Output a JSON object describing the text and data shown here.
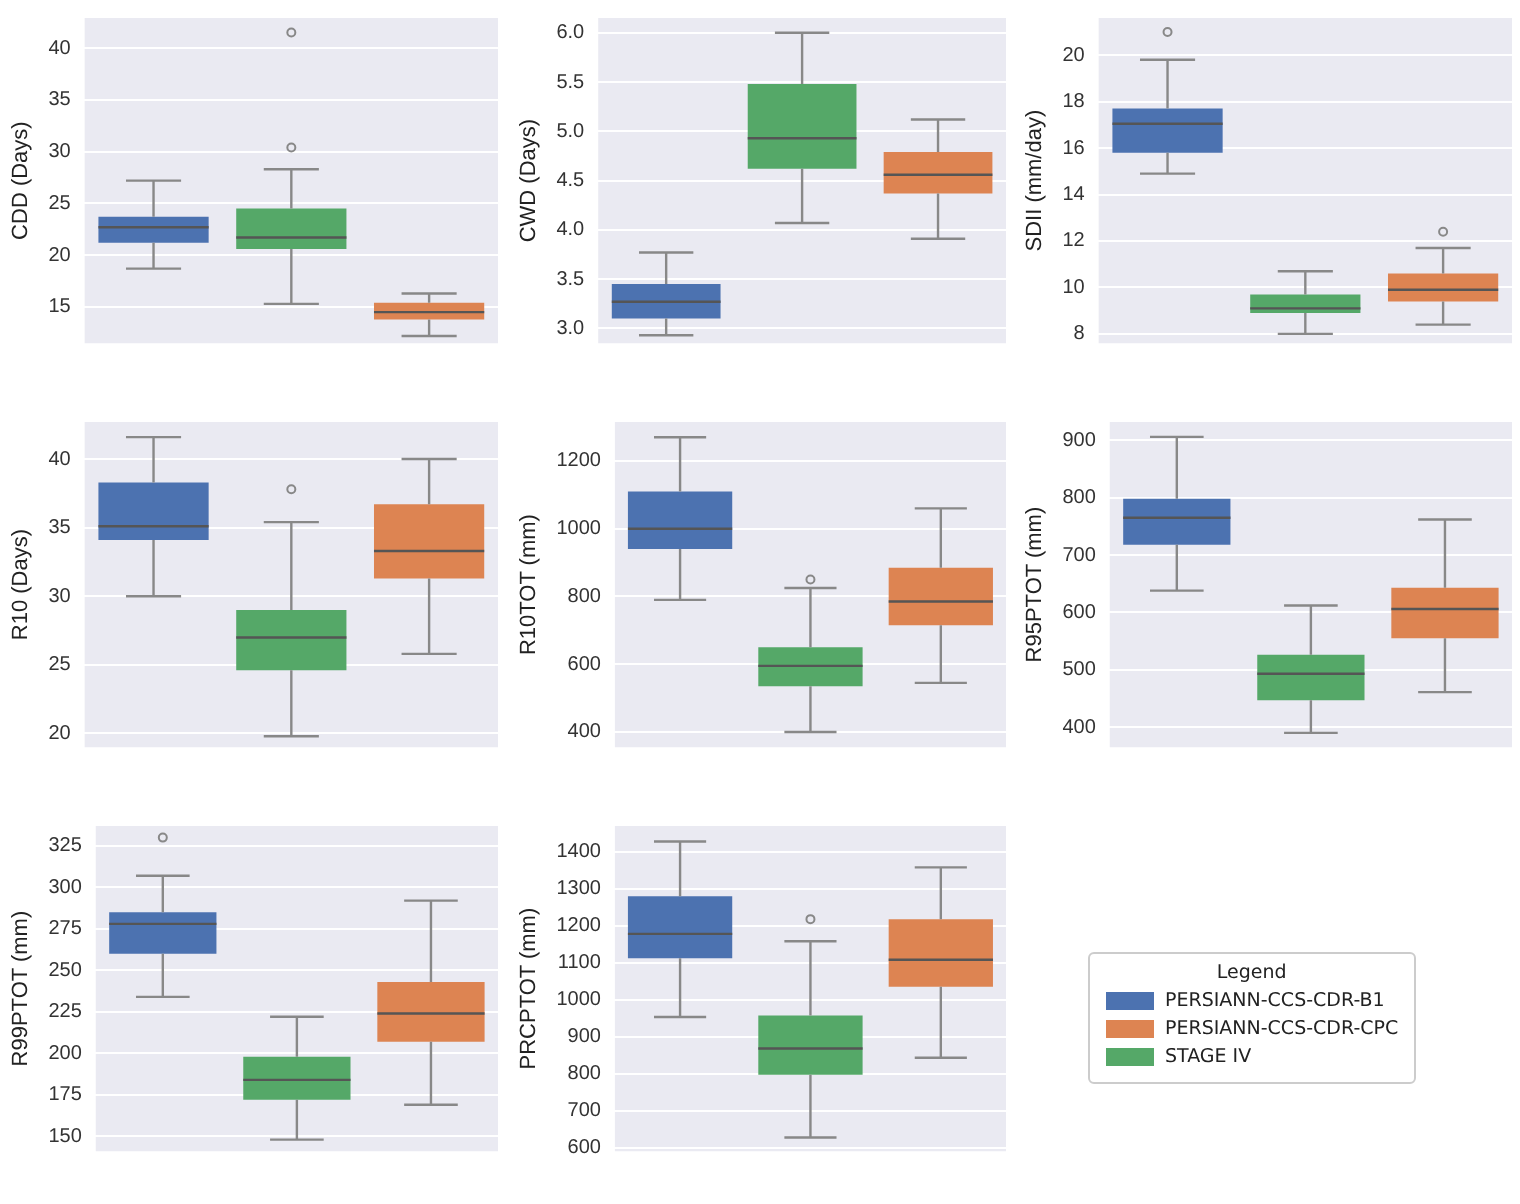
{
  "chart_data": [
    {
      "type": "box",
      "ylabel": "CDD (Days)",
      "categories": [
        null,
        null,
        null
      ],
      "ylim": [
        11.5,
        42.9
      ],
      "yticks": [
        15,
        20,
        25,
        30,
        35,
        40
      ],
      "grid": "y",
      "series": [
        {
          "color": "#4c72b0",
          "boxes": [
            {
              "low": 18.7,
              "q1": 21.2,
              "median": 22.7,
              "q3": 23.7,
              "high": 27.2
            },
            null,
            null
          ]
        },
        {
          "color": "#dd8452",
          "boxes": [
            null,
            null,
            {
              "low": 12.2,
              "q1": 13.8,
              "median": 14.5,
              "q3": 15.4,
              "high": 16.3
            }
          ]
        },
        {
          "color": "#55a868",
          "boxes": [
            null,
            {
              "low": 15.3,
              "q1": 20.6,
              "median": 21.7,
              "q3": 24.5,
              "high": 28.3,
              "outliers": [
                30.4,
                41.5
              ]
            },
            null
          ]
        }
      ]
    },
    {
      "type": "box",
      "ylabel": "CWD (Days)",
      "categories": [
        null,
        null,
        null
      ],
      "ylim": [
        2.85,
        6.15
      ],
      "yticks": [
        {
          "value": 3,
          "label": "3.0"
        },
        3.5,
        {
          "value": 4,
          "label": "4.0"
        },
        4.5,
        {
          "value": 5,
          "label": "5.0"
        },
        5.5,
        {
          "value": 6,
          "label": "6.0"
        }
      ],
      "grid": "y",
      "series": [
        {
          "color": "#4c72b0",
          "boxes": [
            {
              "low": 2.93,
              "q1": 3.1,
              "median": 3.27,
              "q3": 3.45,
              "high": 3.77
            },
            null,
            null
          ]
        },
        {
          "color": "#dd8452",
          "boxes": [
            null,
            null,
            {
              "low": 3.91,
              "q1": 4.37,
              "median": 4.56,
              "q3": 4.79,
              "high": 5.12
            }
          ]
        },
        {
          "color": "#55a868",
          "boxes": [
            null,
            {
              "low": 4.07,
              "q1": 4.62,
              "median": 4.93,
              "q3": 5.48,
              "high": 6.0
            },
            null
          ]
        }
      ]
    },
    {
      "type": "box",
      "ylabel": "SDII (mm/day)",
      "categories": [
        null,
        null,
        null
      ],
      "ylim": [
        7.6,
        21.6
      ],
      "yticks": [
        8,
        10,
        12,
        14,
        16,
        18,
        20
      ],
      "grid": "y",
      "series": [
        {
          "color": "#4c72b0",
          "boxes": [
            {
              "low": 14.9,
              "q1": 15.8,
              "median": 17.05,
              "q3": 17.7,
              "high": 19.8,
              "outliers": [
                21.0
              ]
            },
            null,
            null
          ]
        },
        {
          "color": "#dd8452",
          "boxes": [
            null,
            null,
            {
              "low": 8.4,
              "q1": 9.4,
              "median": 9.9,
              "q3": 10.6,
              "high": 11.7,
              "outliers": [
                12.4
              ]
            }
          ]
        },
        {
          "color": "#55a868",
          "boxes": [
            null,
            {
              "low": 8.0,
              "q1": 8.9,
              "median": 9.1,
              "q3": 9.7,
              "high": 10.7
            },
            null
          ]
        }
      ]
    },
    {
      "type": "box",
      "ylabel": "R10 (Days)",
      "categories": [
        null,
        null,
        null
      ],
      "ylim": [
        19,
        42.7
      ],
      "yticks": [
        20,
        25,
        30,
        35,
        40
      ],
      "grid": "y",
      "series": [
        {
          "color": "#4c72b0",
          "boxes": [
            {
              "low": 30.0,
              "q1": 34.1,
              "median": 35.1,
              "q3": 38.3,
              "high": 41.6
            },
            null,
            null
          ]
        },
        {
          "color": "#dd8452",
          "boxes": [
            null,
            null,
            {
              "low": 25.8,
              "q1": 31.3,
              "median": 33.3,
              "q3": 36.7,
              "high": 40.0
            }
          ]
        },
        {
          "color": "#55a868",
          "boxes": [
            null,
            {
              "low": 19.8,
              "q1": 24.6,
              "median": 27.0,
              "q3": 29.0,
              "high": 35.4,
              "outliers": [
                37.8
              ]
            },
            null
          ]
        }
      ]
    },
    {
      "type": "box",
      "ylabel": "R10TOT (mm)",
      "categories": [
        null,
        null,
        null
      ],
      "ylim": [
        355,
        1315
      ],
      "yticks": [
        400,
        600,
        800,
        1000,
        1200
      ],
      "grid": "y",
      "series": [
        {
          "color": "#4c72b0",
          "boxes": [
            {
              "low": 790,
              "q1": 940,
              "median": 1000,
              "q3": 1110,
              "high": 1270
            },
            null,
            null
          ]
        },
        {
          "color": "#dd8452",
          "boxes": [
            null,
            null,
            {
              "low": 545,
              "q1": 715,
              "median": 785,
              "q3": 885,
              "high": 1060
            }
          ]
        },
        {
          "color": "#55a868",
          "boxes": [
            null,
            {
              "low": 400,
              "q1": 535,
              "median": 595,
              "q3": 650,
              "high": 825,
              "outliers": [
                850
              ]
            },
            null
          ]
        }
      ]
    },
    {
      "type": "box",
      "ylabel": "R95PTOT (mm)",
      "categories": [
        null,
        null,
        null
      ],
      "ylim": [
        365,
        932
      ],
      "yticks": [
        400,
        500,
        600,
        700,
        800,
        900
      ],
      "grid": "y",
      "series": [
        {
          "color": "#4c72b0",
          "boxes": [
            {
              "low": 638,
              "q1": 718,
              "median": 765,
              "q3": 798,
              "high": 906
            },
            null,
            null
          ]
        },
        {
          "color": "#dd8452",
          "boxes": [
            null,
            null,
            {
              "low": 461,
              "q1": 555,
              "median": 606,
              "q3": 643,
              "high": 762
            }
          ]
        },
        {
          "color": "#55a868",
          "boxes": [
            null,
            {
              "low": 390,
              "q1": 447,
              "median": 493,
              "q3": 526,
              "high": 612
            },
            null
          ]
        }
      ]
    },
    {
      "type": "box",
      "ylabel": "R99PTOT (mm)",
      "categories": [
        null,
        null,
        null
      ],
      "ylim": [
        141,
        337
      ],
      "yticks": [
        150,
        175,
        200,
        225,
        250,
        275,
        300,
        325
      ],
      "grid": "y",
      "series": [
        {
          "color": "#4c72b0",
          "boxes": [
            {
              "low": 234,
              "q1": 260,
              "median": 278,
              "q3": 285,
              "high": 307,
              "outliers": [
                330
              ]
            },
            null,
            null
          ]
        },
        {
          "color": "#dd8452",
          "boxes": [
            null,
            null,
            {
              "low": 169,
              "q1": 207,
              "median": 224,
              "q3": 243,
              "high": 292
            }
          ]
        },
        {
          "color": "#55a868",
          "boxes": [
            null,
            {
              "low": 148,
              "q1": 172,
              "median": 184,
              "q3": 198,
              "high": 222
            },
            null
          ]
        }
      ]
    },
    {
      "type": "box",
      "ylabel": "PRCPTOT (mm)",
      "categories": [
        null,
        null,
        null
      ],
      "ylim": [
        590,
        1470
      ],
      "yticks": [
        600,
        700,
        800,
        900,
        1000,
        1100,
        1200,
        1300,
        1400
      ],
      "grid": "y",
      "legend": "right",
      "legend_title": "Legend",
      "series": [
        {
          "name": "PERSIANN-CCS-CDR-B1",
          "color": "#4c72b0",
          "boxes": [
            {
              "low": 953,
              "q1": 1112,
              "median": 1178,
              "q3": 1280,
              "high": 1428
            },
            null,
            null
          ]
        },
        {
          "name": "PERSIANN-CCS-CDR-CPC",
          "color": "#dd8452",
          "boxes": [
            null,
            null,
            {
              "low": 843,
              "q1": 1035,
              "median": 1108,
              "q3": 1218,
              "high": 1358
            }
          ]
        },
        {
          "name": "STAGE IV",
          "color": "#55a868",
          "boxes": [
            null,
            {
              "low": 627,
              "q1": 797,
              "median": 868,
              "q3": 957,
              "high": 1158,
              "outliers": [
                1218
              ]
            },
            null
          ]
        }
      ]
    }
  ]
}
